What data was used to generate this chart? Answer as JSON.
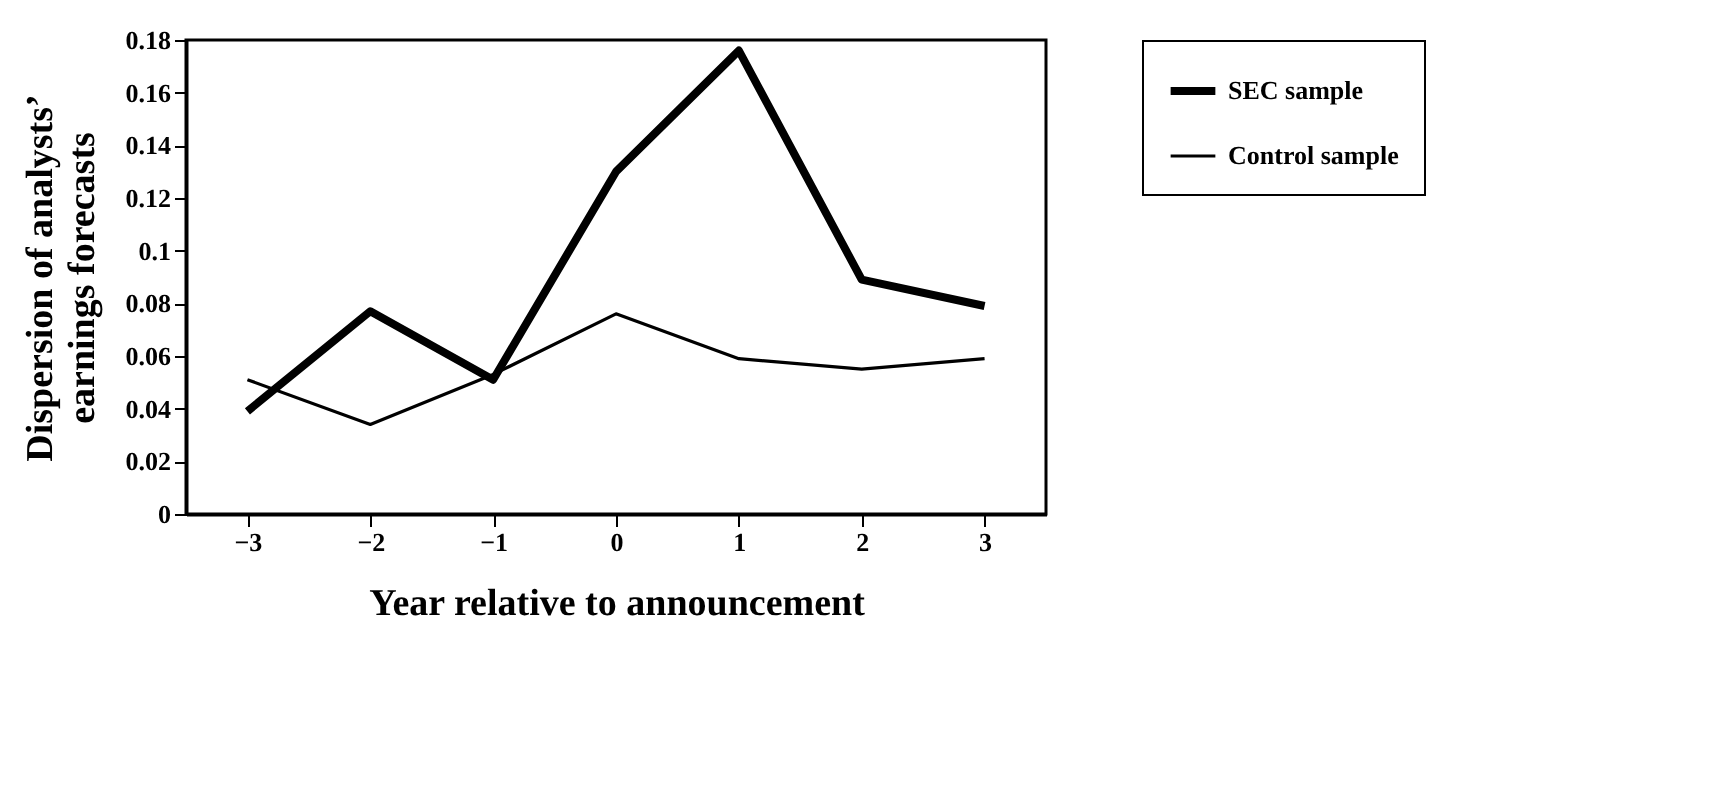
{
  "chart_data": {
    "type": "line",
    "xlabel": "Year relative to announcement",
    "ylabel": "Dispersion of analysts’\nearnings forecasts",
    "x": [
      -3,
      -2,
      -1,
      0,
      1,
      2,
      3
    ],
    "series": [
      {
        "name": "SEC sample",
        "color": "#000000",
        "values": [
          0.039,
          0.077,
          0.051,
          0.13,
          0.176,
          0.089,
          0.079
        ]
      },
      {
        "name": "Control sample",
        "color": "#000000",
        "values": [
          0.051,
          0.034,
          0.053,
          0.076,
          0.059,
          0.055,
          0.059
        ]
      }
    ],
    "xlim": [
      -3.5,
      3.5
    ],
    "xticks": [
      -3,
      -2,
      -1,
      0,
      1,
      2,
      3
    ],
    "ylim": [
      0,
      0.18
    ],
    "yticks": [
      0,
      0.02,
      0.04,
      0.06,
      0.08,
      0.1,
      0.12,
      0.14,
      0.16,
      0.18
    ],
    "legend": "top right",
    "grid": false,
    "marker": "none",
    "line_style": "solid"
  }
}
